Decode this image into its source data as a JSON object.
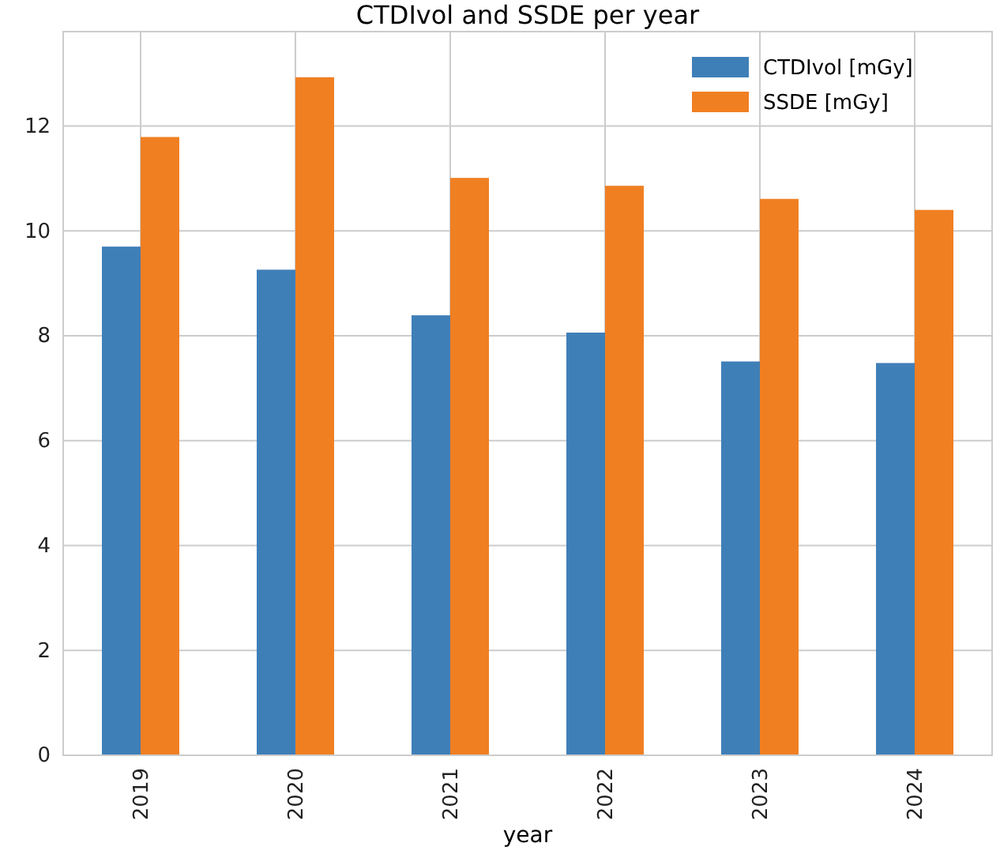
{
  "chart_data": {
    "type": "bar",
    "title": "CTDIvol and SSDE per year",
    "xlabel": "year",
    "categories": [
      "2019",
      "2020",
      "2021",
      "2022",
      "2023",
      "2024"
    ],
    "series": [
      {
        "name": "CTDIvol [mGy]",
        "color": "#3f7fb8",
        "values": [
          9.7,
          9.26,
          8.39,
          8.06,
          7.51,
          7.48
        ]
      },
      {
        "name": "SSDE [mGy]",
        "color": "#f07f22",
        "values": [
          11.79,
          12.93,
          11.01,
          10.86,
          10.61,
          10.4
        ]
      }
    ],
    "ylim": [
      0,
      13.8
    ],
    "yticks": [
      0,
      2,
      4,
      6,
      8,
      10,
      12
    ],
    "grid": true,
    "legend": "top right"
  }
}
